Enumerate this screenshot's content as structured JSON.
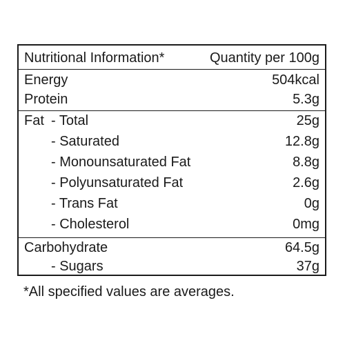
{
  "table": {
    "header": {
      "label": "Nutritional Information*",
      "quantity": "Quantity per 100g"
    },
    "energy": {
      "label": "Energy",
      "value": "504kcal"
    },
    "protein": {
      "label": "Protein",
      "value": "5.3g"
    },
    "fat": {
      "label": "Fat",
      "total": {
        "label": "- Total",
        "value": "25g"
      },
      "saturated": {
        "label": "- Saturated",
        "value": "12.8g"
      },
      "monounsaturated": {
        "label": "- Monounsaturated Fat",
        "value": "8.8g"
      },
      "polyunsaturated": {
        "label": "- Polyunsaturated Fat",
        "value": "2.6g"
      },
      "trans": {
        "label": "- Trans Fat",
        "value": "0g"
      },
      "cholesterol": {
        "label": "- Cholesterol",
        "value": "0mg"
      }
    },
    "carbohydrate": {
      "label": "Carbohydrate",
      "value": "64.5g"
    },
    "sugars": {
      "label": "- Sugars",
      "value": "37g"
    }
  },
  "footnote": "*All specified values are averages."
}
